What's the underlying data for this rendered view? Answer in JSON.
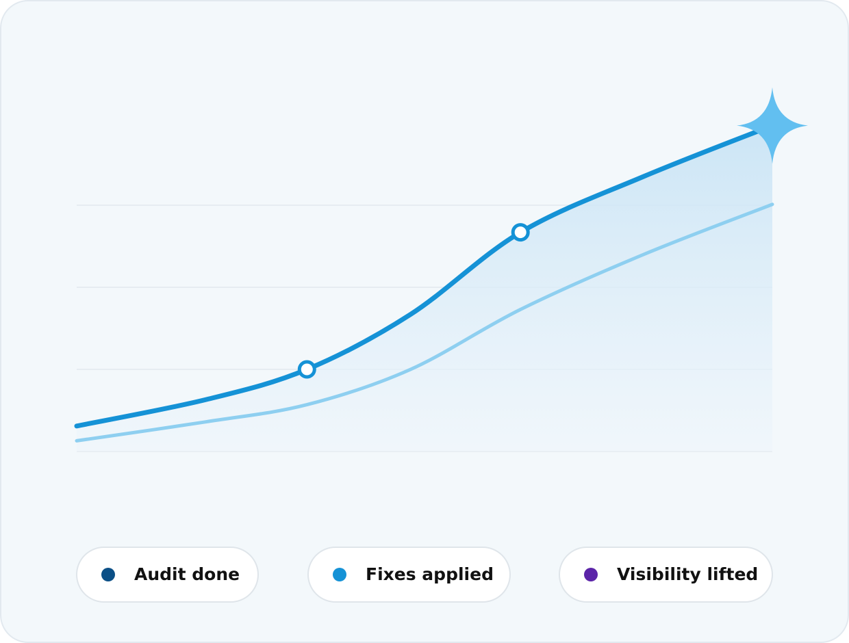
{
  "chart_data": {
    "type": "line",
    "x": [
      0,
      1.85,
      3.31,
      4.8,
      6.38,
      8.15,
      10
    ],
    "xlim": [
      0,
      10
    ],
    "ylim": [
      0,
      4
    ],
    "yticks": [
      0,
      1,
      2,
      3
    ],
    "grid": true,
    "series": [
      {
        "color": "#1592d6",
        "values": [
          0.31,
          0.63,
          1.0,
          1.67,
          2.67,
          3.35,
          3.97
        ]
      },
      {
        "color": "#8ecff0",
        "values": [
          0.13,
          0.36,
          0.57,
          1.0,
          1.73,
          2.4,
          3.01
        ]
      }
    ],
    "milestones": [
      {
        "label": "Audit done",
        "color": "#0b4f86"
      },
      {
        "label": "Fixes applied",
        "color": "#1592d6"
      },
      {
        "label": "Visibility lifted",
        "color": "#5b24a8"
      }
    ]
  }
}
